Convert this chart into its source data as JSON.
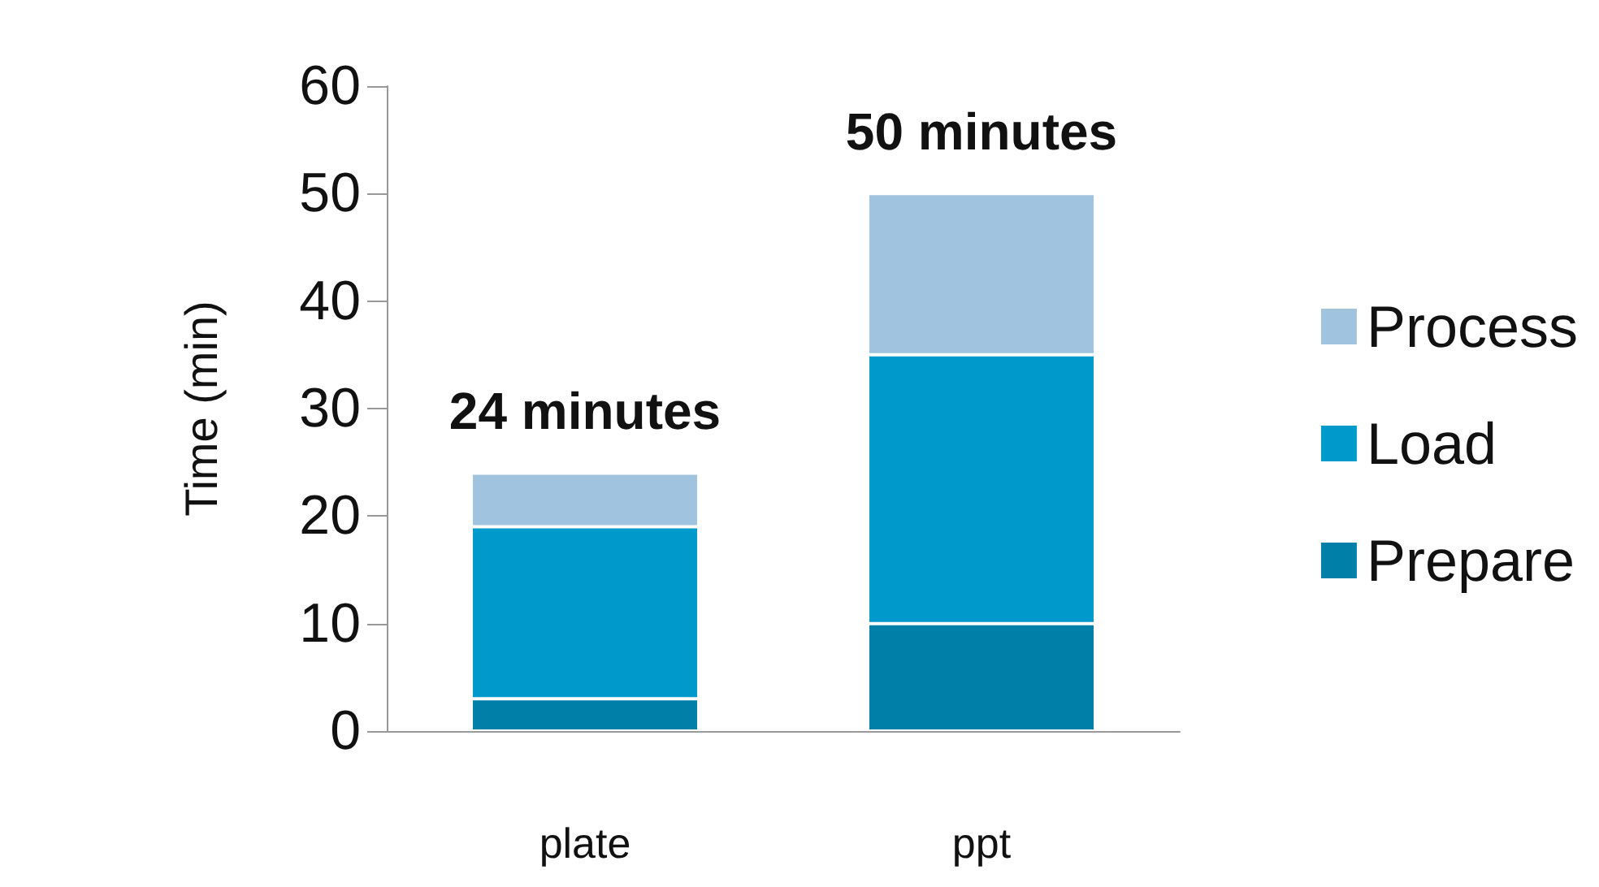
{
  "chart_data": {
    "type": "bar",
    "stacked": true,
    "ylabel": "Time (min)",
    "categories": [
      "plate",
      "ppt"
    ],
    "series": [
      {
        "name": "Prepare",
        "color": "#0080a8",
        "values": [
          3,
          10
        ]
      },
      {
        "name": "Load",
        "color": "#0099cc",
        "values": [
          16,
          25
        ]
      },
      {
        "name": "Process",
        "color": "#a0c4e0",
        "values": [
          5,
          15
        ]
      }
    ],
    "totals": [
      "24 minutes",
      "50 minutes"
    ],
    "ylim": [
      0,
      60
    ],
    "yticks": [
      0,
      10,
      20,
      30,
      40,
      50,
      60
    ],
    "grid": false,
    "legend": "right"
  }
}
